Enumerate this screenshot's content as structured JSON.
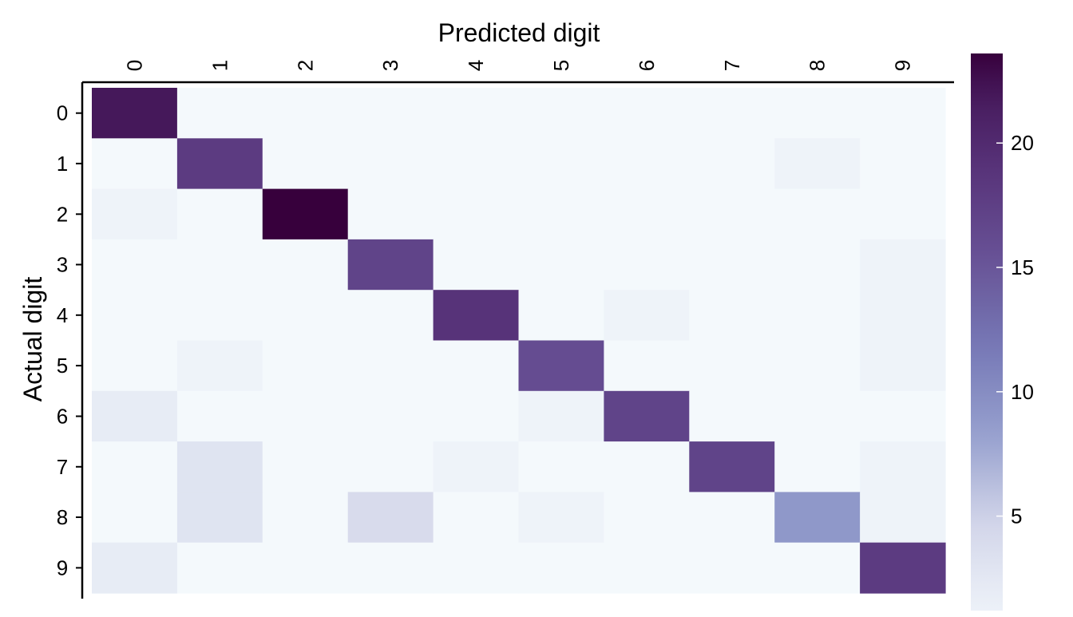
{
  "chart_data": {
    "type": "heatmap",
    "title": "",
    "xlabel": "Predicted digit",
    "ylabel": "Actual digit",
    "x_categories": [
      "0",
      "1",
      "2",
      "3",
      "4",
      "5",
      "6",
      "7",
      "8",
      "9"
    ],
    "y_categories": [
      "0",
      "1",
      "2",
      "3",
      "4",
      "5",
      "6",
      "7",
      "8",
      "9"
    ],
    "x_axis_position": "top",
    "values": [
      [
        22,
        0,
        0,
        0,
        0,
        0,
        0,
        0,
        0,
        0
      ],
      [
        0,
        18,
        0,
        0,
        0,
        0,
        0,
        0,
        1,
        0
      ],
      [
        1,
        0,
        24,
        0,
        0,
        0,
        0,
        0,
        0,
        0
      ],
      [
        0,
        0,
        0,
        17,
        0,
        0,
        0,
        0,
        0,
        1
      ],
      [
        0,
        0,
        0,
        0,
        19,
        0,
        1,
        0,
        0,
        1
      ],
      [
        0,
        1,
        0,
        0,
        0,
        16,
        0,
        0,
        0,
        1
      ],
      [
        2,
        0,
        0,
        0,
        0,
        1,
        17,
        0,
        0,
        0
      ],
      [
        0,
        3,
        0,
        0,
        1,
        0,
        0,
        17,
        0,
        1
      ],
      [
        0,
        3,
        0,
        4,
        0,
        1,
        0,
        0,
        9,
        1
      ],
      [
        2,
        0,
        0,
        0,
        0,
        0,
        0,
        0,
        0,
        18
      ]
    ],
    "colorbar": {
      "min": 0,
      "max": 23.6,
      "ticks": [
        5,
        10,
        15,
        20
      ],
      "colormap": "BuPu",
      "position": "right"
    },
    "grid": false
  }
}
